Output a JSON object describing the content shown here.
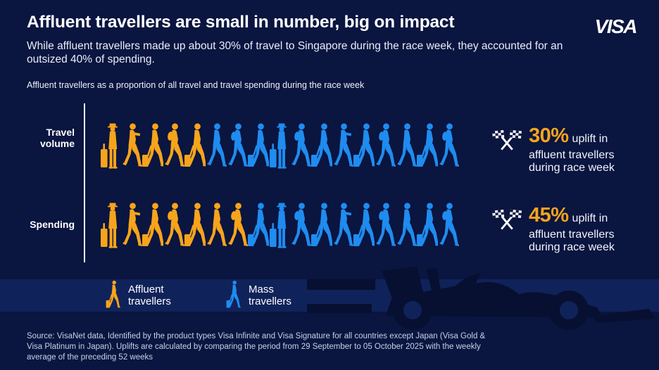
{
  "header": {
    "title": "Affluent travellers are small in number, big on impact",
    "subtitle": "While affluent travellers made up about 30% of travel to Singapore during the race week, they accounted for an outsized 40% of spending.",
    "note": "Affluent travellers as a proportion of all travel and travel spending during the race week",
    "brand_logo": "VISA"
  },
  "colors": {
    "background": "#0A1540",
    "band": "#10225A",
    "car_silhouette": "#071031",
    "accent_number": "#F7A41C",
    "text": "#FFFFFF"
  },
  "chart_data": {
    "type": "pictogram",
    "title": "Affluent travellers as a proportion of all travel and travel spending during the race week",
    "rows": [
      {
        "label": "Travel volume",
        "affluent_icons": 5,
        "mass_icons": 12,
        "affluent_share_pct": 30,
        "uplift_value": "30%",
        "uplift_line1": "uplift in",
        "uplift_line2": "affluent travellers",
        "uplift_line3": "during race week"
      },
      {
        "label": "Spending",
        "affluent_icons": 7,
        "mass_icons": 10,
        "affluent_share_pct": 40,
        "uplift_value": "45%",
        "uplift_line1": "uplift in",
        "uplift_line2": "affluent travellers",
        "uplift_line3": "during race week"
      }
    ],
    "legend": [
      {
        "label": "Affluent travellers",
        "color": "#F7A41C"
      },
      {
        "label": "Mass travellers",
        "color": "#1F8CEF"
      }
    ]
  },
  "footer": {
    "source": "Source: VisaNet data, Identified by the product types Visa Infinite and Visa Signature for all countries except Japan (Visa Gold & Visa Platinum in Japan). Uplifts are calculated by comparing the period from 29 September to 05 October 2025 with the weekly average of the preceding 52 weeks"
  }
}
